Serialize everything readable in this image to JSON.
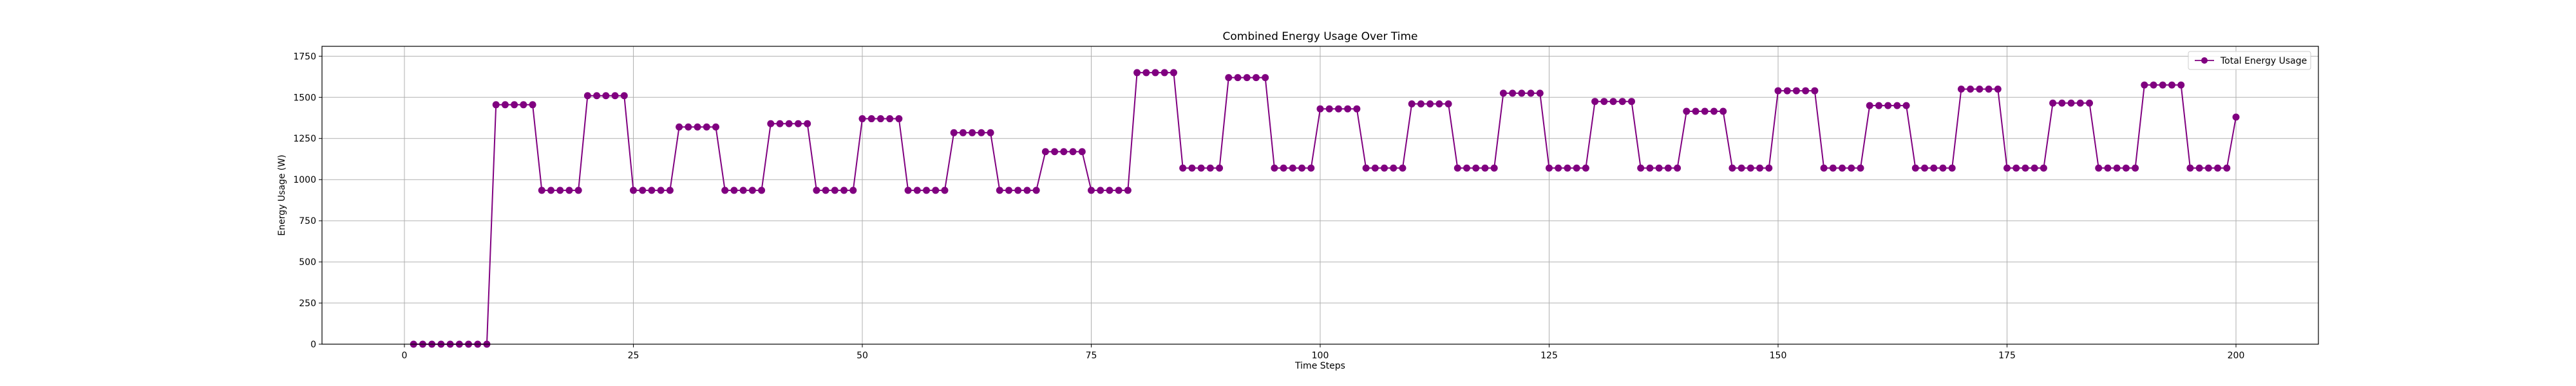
{
  "chart_data": {
    "type": "line",
    "title": "Combined Energy Usage Over Time",
    "xlabel": "Time Steps",
    "ylabel": "Energy Usage (W)",
    "xlim": [
      -9,
      209
    ],
    "ylim": [
      0,
      1810
    ],
    "xticks": [
      0,
      25,
      50,
      75,
      100,
      125,
      150,
      175,
      200
    ],
    "yticks": [
      0,
      250,
      500,
      750,
      1000,
      1250,
      1500,
      1750
    ],
    "grid": true,
    "legend_position": "upper right",
    "series": [
      {
        "name": "Total Energy Usage",
        "color": "#800080",
        "marker": "circle",
        "x_start": 1,
        "x_step": 1,
        "y": [
          0,
          0,
          0,
          0,
          0,
          0,
          0,
          0,
          0,
          1455,
          1455,
          1455,
          1455,
          1455,
          935,
          935,
          935,
          935,
          935,
          1510,
          1510,
          1510,
          1510,
          1510,
          935,
          935,
          935,
          935,
          935,
          1320,
          1320,
          1320,
          1320,
          1320,
          935,
          935,
          935,
          935,
          935,
          1340,
          1340,
          1340,
          1340,
          1340,
          935,
          935,
          935,
          935,
          935,
          1370,
          1370,
          1370,
          1370,
          1370,
          935,
          935,
          935,
          935,
          935,
          1285,
          1285,
          1285,
          1285,
          1285,
          935,
          935,
          935,
          935,
          935,
          1170,
          1170,
          1170,
          1170,
          1170,
          935,
          935,
          935,
          935,
          935,
          1650,
          1650,
          1650,
          1650,
          1650,
          1070,
          1070,
          1070,
          1070,
          1070,
          1620,
          1620,
          1620,
          1620,
          1620,
          1070,
          1070,
          1070,
          1070,
          1070,
          1430,
          1430,
          1430,
          1430,
          1430,
          1070,
          1070,
          1070,
          1070,
          1070,
          1460,
          1460,
          1460,
          1460,
          1460,
          1070,
          1070,
          1070,
          1070,
          1070,
          1525,
          1525,
          1525,
          1525,
          1525,
          1070,
          1070,
          1070,
          1070,
          1070,
          1475,
          1475,
          1475,
          1475,
          1475,
          1070,
          1070,
          1070,
          1070,
          1070,
          1415,
          1415,
          1415,
          1415,
          1415,
          1070,
          1070,
          1070,
          1070,
          1070,
          1540,
          1540,
          1540,
          1540,
          1540,
          1070,
          1070,
          1070,
          1070,
          1070,
          1450,
          1450,
          1450,
          1450,
          1450,
          1070,
          1070,
          1070,
          1070,
          1070,
          1550,
          1550,
          1550,
          1550,
          1550,
          1070,
          1070,
          1070,
          1070,
          1070,
          1465,
          1465,
          1465,
          1465,
          1465,
          1070,
          1070,
          1070,
          1070,
          1070,
          1575,
          1575,
          1575,
          1575,
          1575,
          1070,
          1070,
          1070,
          1070,
          1070,
          1380
        ]
      }
    ]
  }
}
